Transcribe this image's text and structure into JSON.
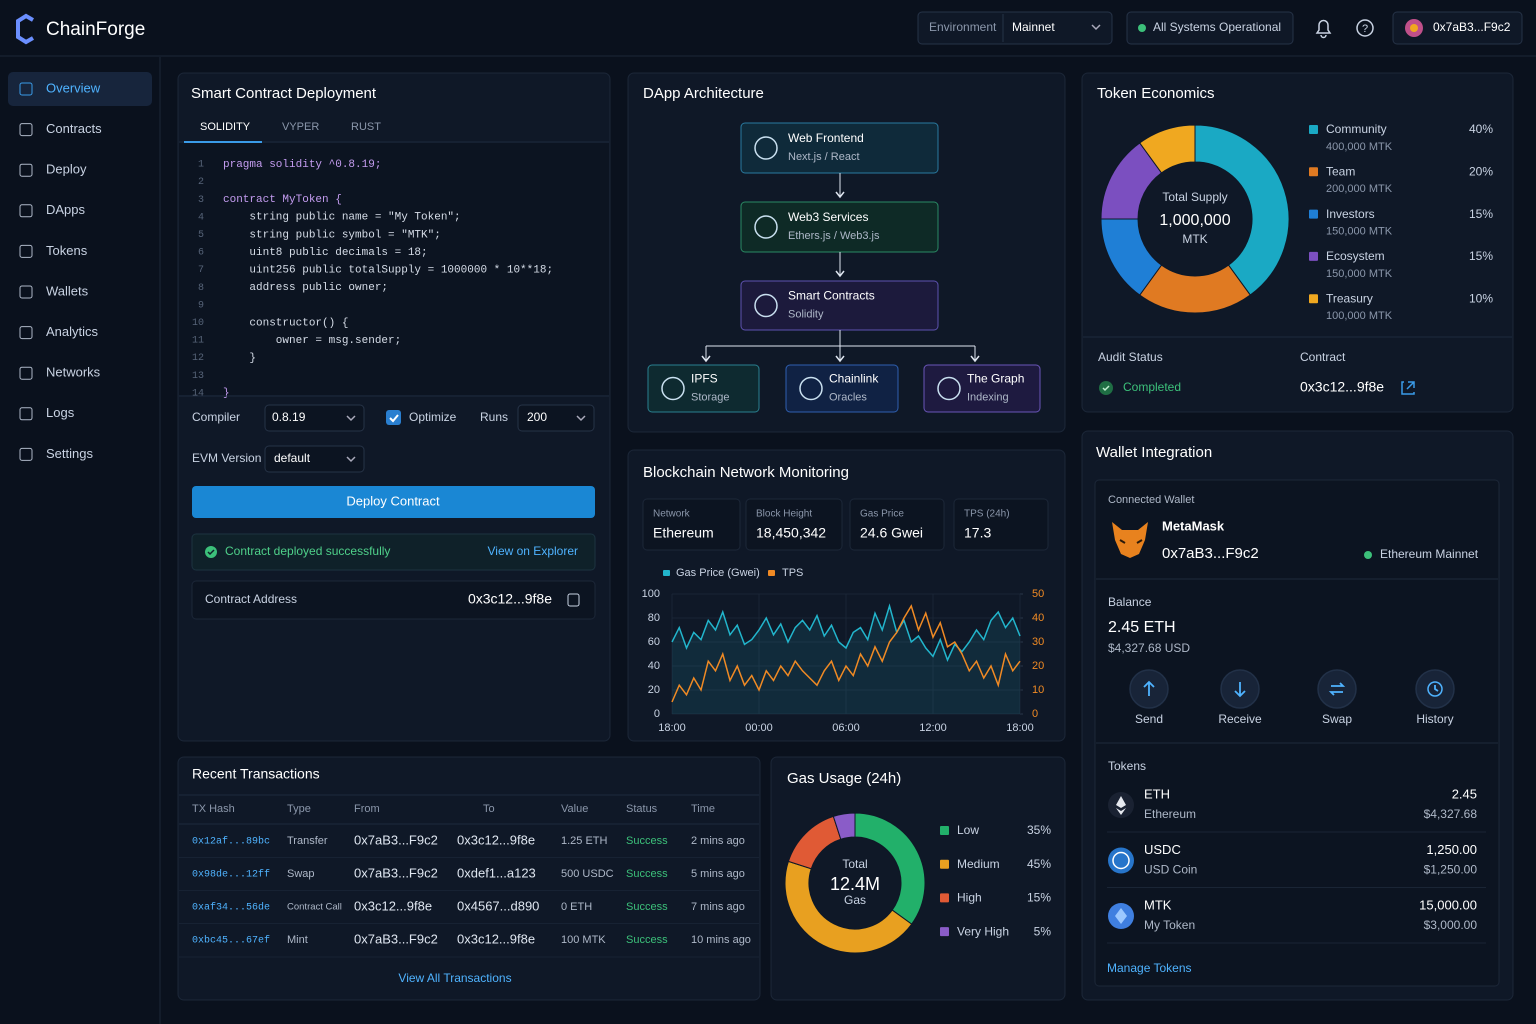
{
  "header": {
    "brand": "ChainForge",
    "environment_label": "Environment",
    "environment": "Mainnet",
    "status": "All Systems Operational",
    "account": "0x7aB3...F9c2"
  },
  "nav": {
    "items": [
      "Overview",
      "Contracts",
      "Deploy",
      "DApps",
      "Tokens",
      "Wallets",
      "Analytics",
      "Networks",
      "Logs",
      "Settings"
    ],
    "active": 0
  },
  "deploy": {
    "title": "Smart Contract Deployment",
    "tabs": [
      "SOLIDITY",
      "VYPER",
      "RUST"
    ],
    "active_tab": 0,
    "code": {
      "line_numbers": [
        1,
        2,
        3,
        4,
        5,
        6,
        7,
        8,
        9,
        10,
        11,
        12,
        13,
        14
      ],
      "lines": [
        "pragma solidity ^0.8.19;",
        null,
        "contract MyToken {",
        "    string public name = \"My Token\";",
        "    string public symbol = \"MTK\";",
        "    uint8 public decimals = 18;",
        "    uint256 public totalSupply = 1000000 * 10**18;",
        "    address public owner;",
        null,
        "    constructor() {",
        "        owner = msg.sender;",
        "    }",
        null,
        "}"
      ]
    },
    "compiler_label": "Compiler",
    "compiler": "0.8.19",
    "optimize_label": "Optimize",
    "optimize": true,
    "runs_label": "Runs",
    "runs": "200",
    "evm_label": "EVM Version",
    "evm": "default",
    "button": "Deploy Contract",
    "success": "Contract deployed successfully",
    "explorer_link": "View on Explorer",
    "address_label": "Contract Address",
    "address": "0x3c12...9f8e"
  },
  "architecture": {
    "title": "DApp Architecture",
    "nodes": [
      {
        "title": "Web Frontend",
        "subtitle": "Next.js / React"
      },
      {
        "title": "Web3 Services",
        "subtitle": "Ethers.js / Web3.js"
      },
      {
        "title": "Smart Contracts",
        "subtitle": "Solidity"
      },
      {
        "title": "IPFS",
        "subtitle": "Storage"
      },
      {
        "title": "Chainlink",
        "subtitle": "Oracles"
      },
      {
        "title": "The Graph",
        "subtitle": "Indexing"
      }
    ]
  },
  "chart_data": [
    {
      "type": "pie",
      "title": "Token Economics",
      "center": [
        "Total Supply",
        "1,000,000",
        "MTK"
      ],
      "categories": [
        "Community",
        "Team",
        "Investors",
        "Ecosystem",
        "Treasury"
      ],
      "values": [
        40,
        20,
        15,
        15,
        10
      ],
      "value_labels": [
        "40%",
        "20%",
        "15%",
        "15%",
        "10%"
      ],
      "amounts": [
        "400,000 MTK",
        "200,000 MTK",
        "150,000 MTK",
        "150,000 MTK",
        "100,000 MTK"
      ],
      "colors": [
        "#1aa9c4",
        "#e07a22",
        "#1f7fd6",
        "#7b4fc0",
        "#f0a820"
      ]
    },
    {
      "type": "line",
      "title": "Blockchain Network Monitoring",
      "x": [
        "18:00",
        null,
        null,
        null,
        null,
        null,
        null,
        null,
        null,
        null,
        null,
        null,
        "00:00",
        null,
        null,
        null,
        null,
        null,
        null,
        null,
        null,
        null,
        null,
        null,
        "06:00",
        null,
        null,
        null,
        null,
        null,
        null,
        null,
        null,
        null,
        null,
        null,
        "12:00",
        null,
        null,
        null,
        null,
        null,
        null,
        null,
        null,
        null,
        null,
        null,
        "18:00"
      ],
      "series": [
        {
          "name": "Gas Price (Gwei)",
          "color": "#22b5cc",
          "values": [
            60,
            72,
            55,
            68,
            62,
            78,
            70,
            85,
            66,
            74,
            58,
            62,
            70,
            80,
            66,
            75,
            60,
            72,
            78,
            70,
            82,
            65,
            74,
            60,
            55,
            68,
            72,
            62,
            84,
            70,
            90,
            68,
            78,
            60,
            65,
            55,
            48,
            62,
            45,
            58,
            52,
            60,
            70,
            62,
            78,
            85,
            72,
            80,
            65
          ]
        },
        {
          "name": "TPS",
          "color": "#f08a24",
          "axis": "y2",
          "values": [
            5,
            12,
            8,
            15,
            10,
            22,
            18,
            25,
            14,
            20,
            12,
            16,
            10,
            18,
            14,
            20,
            16,
            22,
            18,
            15,
            12,
            18,
            22,
            14,
            20,
            16,
            25,
            20,
            28,
            22,
            30,
            34,
            40,
            45,
            35,
            42,
            32,
            38,
            28,
            30,
            25,
            18,
            22,
            15,
            20,
            12,
            25,
            18,
            22
          ]
        }
      ],
      "ylim": [
        0,
        100
      ],
      "yticks": [
        0,
        20,
        40,
        60,
        80,
        100
      ],
      "y2lim": [
        0,
        50
      ],
      "y2ticks": [
        0,
        10,
        20,
        30,
        40,
        50
      ],
      "grid": true
    },
    {
      "type": "pie",
      "title": "Gas Usage (24h)",
      "center": [
        "Total",
        "12.4M",
        "Gas"
      ],
      "categories": [
        "Low",
        "Medium",
        "High",
        "Very High"
      ],
      "values": [
        35,
        45,
        15,
        5
      ],
      "value_labels": [
        "35%",
        "45%",
        "15%",
        "5%"
      ],
      "colors": [
        "#22b06a",
        "#e8a020",
        "#e05a35",
        "#8a5cc8"
      ]
    }
  ],
  "audit": {
    "label": "Audit Status",
    "status": "Completed",
    "contract_label": "Contract",
    "contract": "0x3c12...9f8e"
  },
  "network_stats": [
    {
      "label": "Network",
      "value": "Ethereum"
    },
    {
      "label": "Block Height",
      "value": "18,450,342"
    },
    {
      "label": "Gas Price",
      "value": "24.6 Gwei"
    },
    {
      "label": "TPS (24h)",
      "value": "17.3"
    }
  ],
  "transactions": {
    "title": "Recent Transactions",
    "columns": [
      "TX Hash",
      "Type",
      "From",
      "To",
      "Value",
      "Status",
      "Time"
    ],
    "rows": [
      [
        "0x12af...89bc",
        "Transfer",
        "0x7aB3...F9c2",
        "0x3c12...9f8e",
        "1.25 ETH",
        "Success",
        "2 mins ago"
      ],
      [
        "0x98de...12ff",
        "Swap",
        "0x7aB3...F9c2",
        "0xdef1...a123",
        "500 USDC",
        "Success",
        "5 mins ago"
      ],
      [
        "0xaf34...56de",
        "Contract Call",
        "0x3c12...9f8e",
        "0x4567...d890",
        "0 ETH",
        "Success",
        "7 mins ago"
      ],
      [
        "0xbc45...67ef",
        "Mint",
        "0x7aB3...F9c2",
        "0x3c12...9f8e",
        "100 MTK",
        "Success",
        "10 mins ago"
      ]
    ],
    "link": "View All Transactions"
  },
  "wallet": {
    "title": "Wallet Integration",
    "connected_label": "Connected Wallet",
    "provider": "MetaMask",
    "address": "0x7aB3...F9c2",
    "network": "Ethereum Mainnet",
    "balance_label": "Balance",
    "balance": "2.45 ETH",
    "balance_usd": "$4,327.68 USD",
    "actions": [
      "Send",
      "Receive",
      "Swap",
      "History"
    ],
    "tokens_label": "Tokens",
    "tokens": [
      {
        "symbol": "ETH",
        "name": "Ethereum",
        "amount": "2.45",
        "usd": "$4,327.68"
      },
      {
        "symbol": "USDC",
        "name": "USD Coin",
        "amount": "1,250.00",
        "usd": "$1,250.00"
      },
      {
        "symbol": "MTK",
        "name": "My Token",
        "amount": "15,000.00",
        "usd": "$3,000.00"
      }
    ],
    "manage_link": "Manage Tokens"
  }
}
